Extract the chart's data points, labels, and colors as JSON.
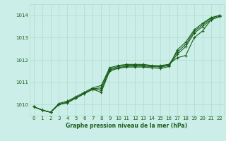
{
  "bg_color": "#cceee8",
  "grid_color": "#aaddcc",
  "line_color": "#1a5e1a",
  "marker_color": "#1a5e1a",
  "title": "Graphe pression niveau de la mer (hPa)",
  "title_color": "#1a5e1a",
  "ylim": [
    1009.5,
    1014.5
  ],
  "xlim": [
    -0.5,
    22.5
  ],
  "yticks": [
    1010,
    1011,
    1012,
    1013,
    1014
  ],
  "xticks": [
    0,
    1,
    2,
    3,
    4,
    5,
    6,
    7,
    8,
    9,
    10,
    11,
    12,
    13,
    14,
    15,
    16,
    17,
    18,
    19,
    20,
    21,
    22
  ],
  "series": [
    {
      "x": [
        0,
        1,
        2,
        3,
        4,
        5,
        6,
        7,
        8,
        9,
        10,
        11,
        12,
        13,
        14,
        15,
        16,
        17,
        18,
        19,
        20,
        21,
        22
      ],
      "y": [
        1009.9,
        1009.75,
        1009.65,
        1010.05,
        1010.15,
        1010.35,
        1010.55,
        1010.75,
        1010.85,
        1011.65,
        1011.75,
        1011.8,
        1011.8,
        1011.8,
        1011.75,
        1011.75,
        1011.8,
        1012.1,
        1012.2,
        1013.0,
        1013.3,
        1013.8,
        1013.95
      ]
    },
    {
      "x": [
        0,
        1,
        2,
        3,
        4,
        5,
        6,
        7,
        8,
        9,
        10,
        11,
        12,
        13,
        14,
        15,
        16,
        17,
        18,
        19,
        20,
        21,
        22
      ],
      "y": [
        1009.9,
        1009.75,
        1009.65,
        1010.0,
        1010.1,
        1010.3,
        1010.5,
        1010.7,
        1010.65,
        1011.55,
        1011.65,
        1011.72,
        1011.72,
        1011.72,
        1011.7,
        1011.68,
        1011.75,
        1012.25,
        1012.6,
        1013.2,
        1013.5,
        1013.8,
        1013.95
      ]
    },
    {
      "x": [
        0,
        1,
        2,
        3,
        4,
        5,
        6,
        7,
        8,
        9,
        10,
        11,
        12,
        13,
        14,
        15,
        16,
        17,
        18,
        19,
        20,
        21,
        22
      ],
      "y": [
        1009.9,
        1009.75,
        1009.65,
        1010.0,
        1010.1,
        1010.3,
        1010.5,
        1010.7,
        1010.75,
        1011.6,
        1011.7,
        1011.76,
        1011.76,
        1011.76,
        1011.72,
        1011.7,
        1011.78,
        1012.35,
        1012.7,
        1013.28,
        1013.58,
        1013.87,
        1014.0
      ]
    },
    {
      "x": [
        0,
        1,
        2,
        3,
        4,
        5,
        6,
        7,
        8,
        9,
        10,
        11,
        12,
        13,
        14,
        15,
        16,
        17,
        18,
        19,
        20,
        21,
        22
      ],
      "y": [
        1009.9,
        1009.75,
        1009.65,
        1010.0,
        1010.08,
        1010.28,
        1010.48,
        1010.68,
        1010.55,
        1011.5,
        1011.62,
        1011.68,
        1011.68,
        1011.68,
        1011.65,
        1011.62,
        1011.7,
        1012.45,
        1012.8,
        1013.35,
        1013.65,
        1013.9,
        1014.0
      ]
    }
  ],
  "linewidth": 0.8,
  "marker_style": "+",
  "marker_size": 3,
  "marker_linewidth": 0.8
}
